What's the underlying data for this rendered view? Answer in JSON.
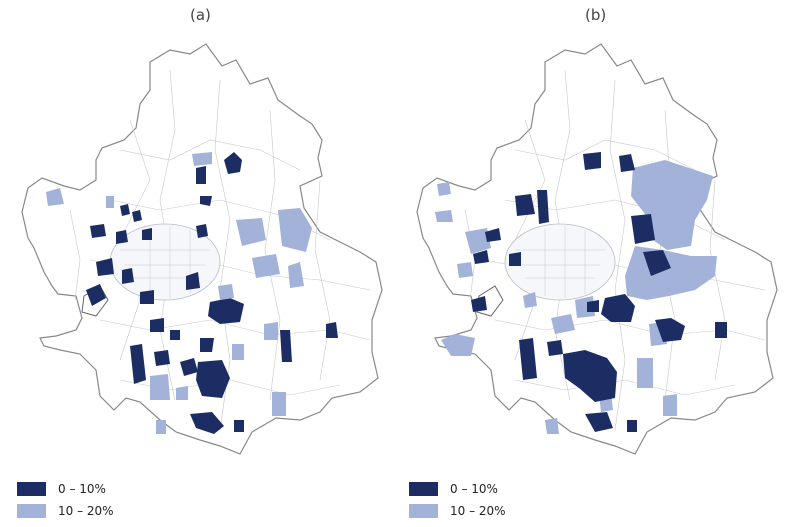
{
  "panels": [
    {
      "label": "(a)"
    },
    {
      "label": "(b)"
    }
  ],
  "legend": [
    {
      "label": "0 – 10%",
      "color": "#1c2d63"
    },
    {
      "label": "10 – 20%",
      "color": "#a3b2d8"
    }
  ],
  "colors": {
    "outline": "#888888",
    "inner_lines": "#c8c8c8",
    "background": "#ffffff"
  }
}
